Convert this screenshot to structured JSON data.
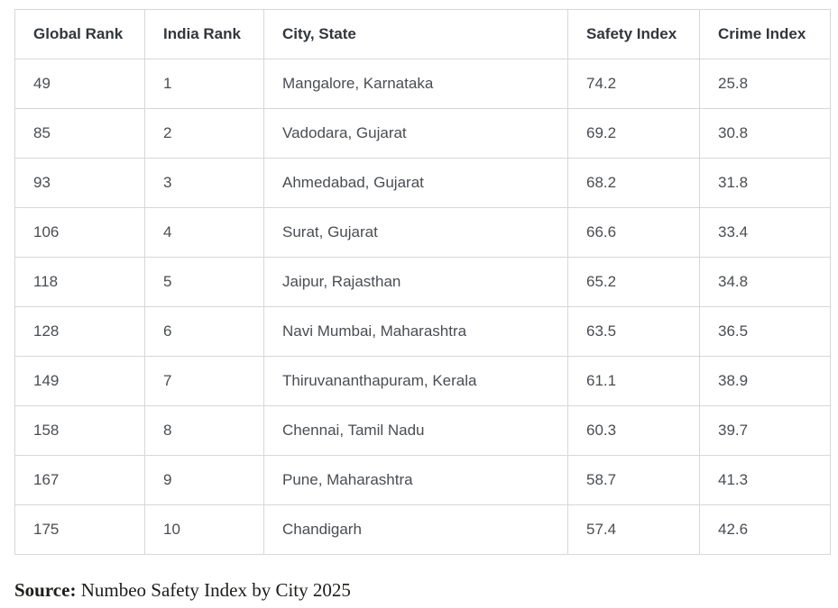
{
  "chart_data": {
    "type": "table",
    "title": "",
    "columns": [
      "Global Rank",
      "India Rank",
      "City, State",
      "Safety Index",
      "Crime Index"
    ],
    "rows": [
      {
        "global_rank": "49",
        "india_rank": "1",
        "city_state": "Mangalore, Karnataka",
        "safety_index": "74.2",
        "crime_index": "25.8"
      },
      {
        "global_rank": "85",
        "india_rank": "2",
        "city_state": "Vadodara, Gujarat",
        "safety_index": "69.2",
        "crime_index": "30.8"
      },
      {
        "global_rank": "93",
        "india_rank": "3",
        "city_state": "Ahmedabad, Gujarat",
        "safety_index": "68.2",
        "crime_index": "31.8"
      },
      {
        "global_rank": "106",
        "india_rank": "4",
        "city_state": "Surat, Gujarat",
        "safety_index": "66.6",
        "crime_index": "33.4"
      },
      {
        "global_rank": "118",
        "india_rank": "5",
        "city_state": "Jaipur, Rajasthan",
        "safety_index": "65.2",
        "crime_index": "34.8"
      },
      {
        "global_rank": "128",
        "india_rank": "6",
        "city_state": "Navi Mumbai, Maharashtra",
        "safety_index": "63.5",
        "crime_index": "36.5"
      },
      {
        "global_rank": "149",
        "india_rank": "7",
        "city_state": "Thiruvananthapuram, Kerala",
        "safety_index": "61.1",
        "crime_index": "38.9"
      },
      {
        "global_rank": "158",
        "india_rank": "8",
        "city_state": "Chennai, Tamil Nadu",
        "safety_index": "60.3",
        "crime_index": "39.7"
      },
      {
        "global_rank": "167",
        "india_rank": "9",
        "city_state": "Pune, Maharashtra",
        "safety_index": "58.7",
        "crime_index": "41.3"
      },
      {
        "global_rank": "175",
        "india_rank": "10",
        "city_state": "Chandigarh",
        "safety_index": "57.4",
        "crime_index": "42.6"
      }
    ]
  },
  "header": {
    "global_rank": "Global Rank",
    "india_rank": "India Rank",
    "city_state": "City, State",
    "safety_index": "Safety Index",
    "crime_index": "Crime Index"
  },
  "source": {
    "label": "Source:",
    "text": " Numbeo Safety Index by City 2025"
  },
  "colors": {
    "border": "#d7d7d7",
    "header_text": "#33363a",
    "body_text": "#4a4d51",
    "source_text": "#1c1c1a",
    "background": "#ffffff"
  }
}
